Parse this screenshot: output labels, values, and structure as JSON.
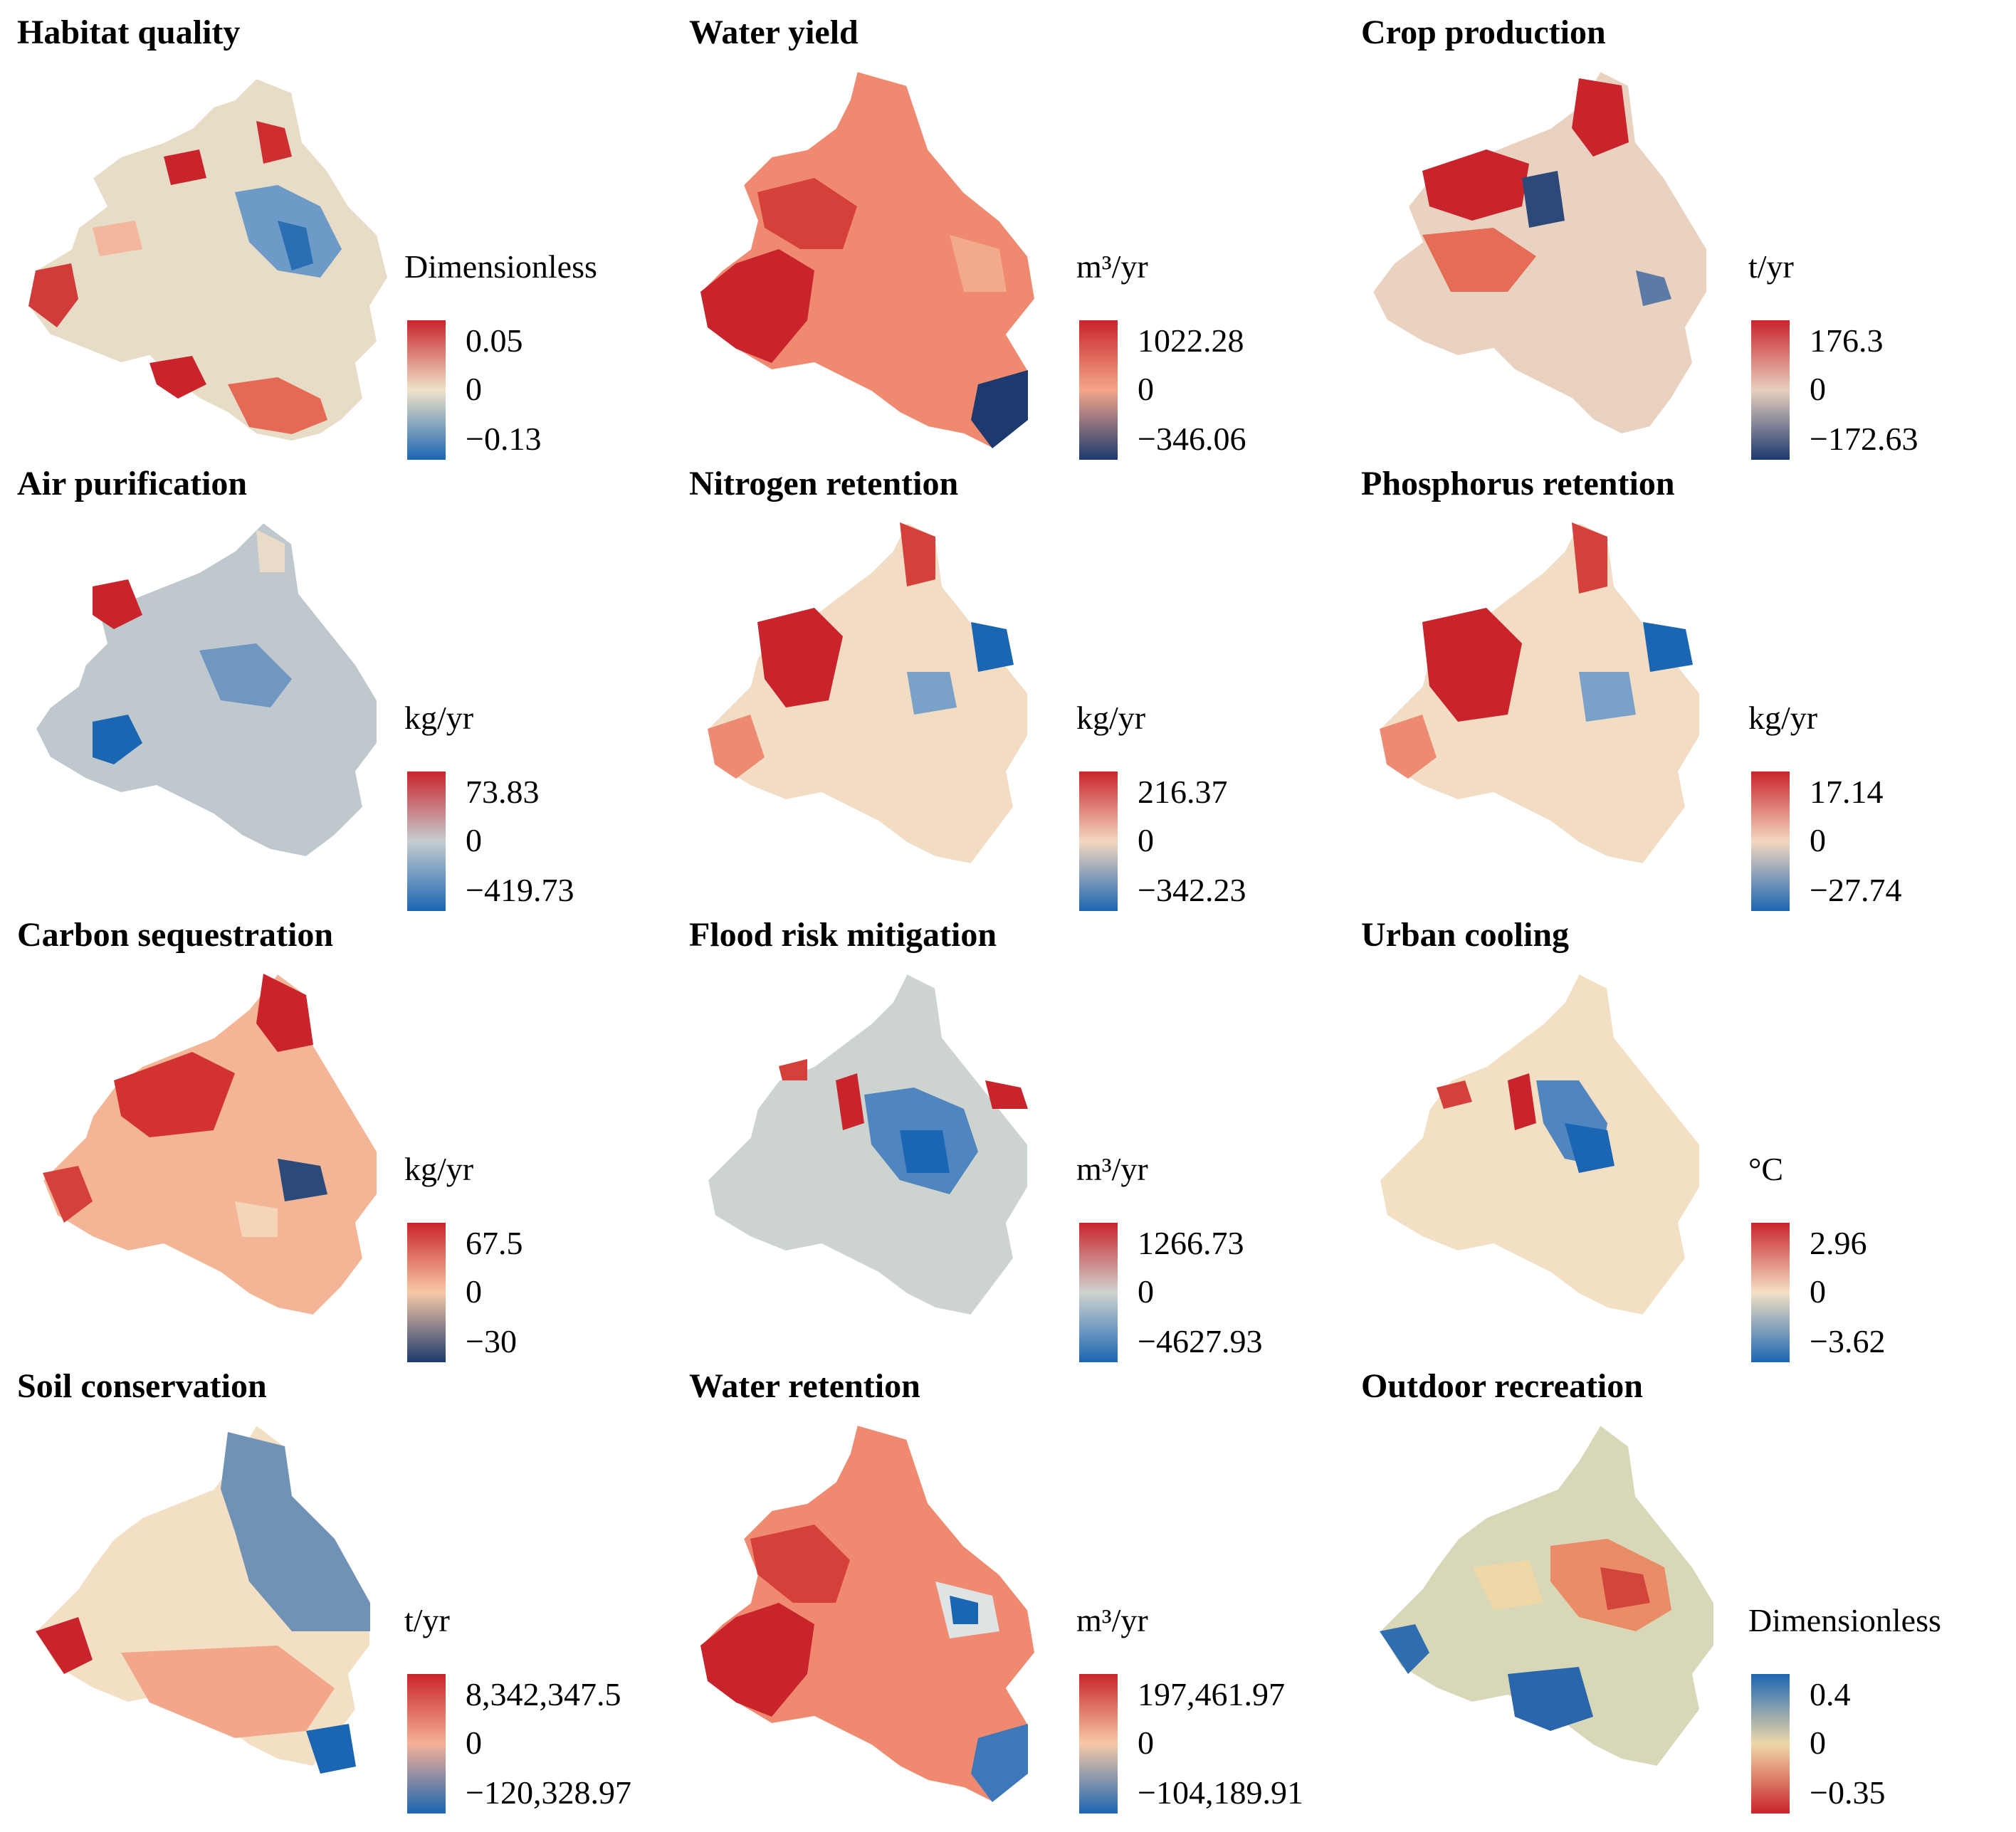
{
  "panels": [
    {
      "title": "Habitat quality",
      "unit": "Dimensionless",
      "max": "0.05",
      "zero": "0",
      "min": "−0.13",
      "colors": [
        "#c9242b",
        "#efe3c9",
        "#1b66b2"
      ]
    },
    {
      "title": "Water yield",
      "unit": "m³/yr",
      "max": "1022.28",
      "zero": "0",
      "min": "−346.06",
      "colors": [
        "#c9242b",
        "#f4a58a",
        "#1c3a6e"
      ]
    },
    {
      "title": "Crop production",
      "unit": "t/yr",
      "max": "176.3",
      "zero": "0",
      "min": "−172.63",
      "colors": [
        "#c9242b",
        "#e8cfbe",
        "#1c3a6e"
      ]
    },
    {
      "title": "Air purification",
      "unit": "kg/yr",
      "max": "73.83",
      "zero": "0",
      "min": "−419.73",
      "colors": [
        "#c9242b",
        "#c5ccd0",
        "#1b66b2"
      ]
    },
    {
      "title": "Nitrogen retention",
      "unit": "kg/yr",
      "max": "216.37",
      "zero": "0",
      "min": "−342.23",
      "colors": [
        "#c9242b",
        "#f3d7bf",
        "#1b66b2"
      ]
    },
    {
      "title": "Phosphorus retention",
      "unit": "kg/yr",
      "max": "17.14",
      "zero": "0",
      "min": "−27.74",
      "colors": [
        "#c9242b",
        "#f3d7bf",
        "#1b66b2"
      ]
    },
    {
      "title": "Carbon sequestration",
      "unit": "kg/yr",
      "max": "67.5",
      "zero": "0",
      "min": "−30",
      "colors": [
        "#c9242b",
        "#f7c9a6",
        "#1c3a6e"
      ]
    },
    {
      "title": "Flood risk mitigation",
      "unit": "m³/yr",
      "max": "1266.73",
      "zero": "0",
      "min": "−4627.93",
      "colors": [
        "#c9242b",
        "#cfd3cf",
        "#1b66b2"
      ]
    },
    {
      "title": "Urban cooling",
      "unit": "°C",
      "max": "2.96",
      "zero": "0",
      "min": "−3.62",
      "colors": [
        "#c9242b",
        "#f3e0c4",
        "#1b66b2"
      ]
    },
    {
      "title": "Soil conservation",
      "unit": "t/yr",
      "max": "8,342,347.5",
      "zero": "0",
      "min": "−120,328.97",
      "colors": [
        "#c9242b",
        "#f4b096",
        "#1b66b2"
      ]
    },
    {
      "title": "Water retention",
      "unit": "m³/yr",
      "max": "197,461.97",
      "zero": "0",
      "min": "−104,189.91",
      "colors": [
        "#c9242b",
        "#f7c9a6",
        "#1b66b2"
      ]
    },
    {
      "title": "Outdoor recreation",
      "unit": "Dimensionless",
      "max": "0.4",
      "zero": "0",
      "min": "−0.35",
      "colors": [
        "#1b66b2",
        "#efd8a8",
        "#c9242b"
      ]
    }
  ]
}
